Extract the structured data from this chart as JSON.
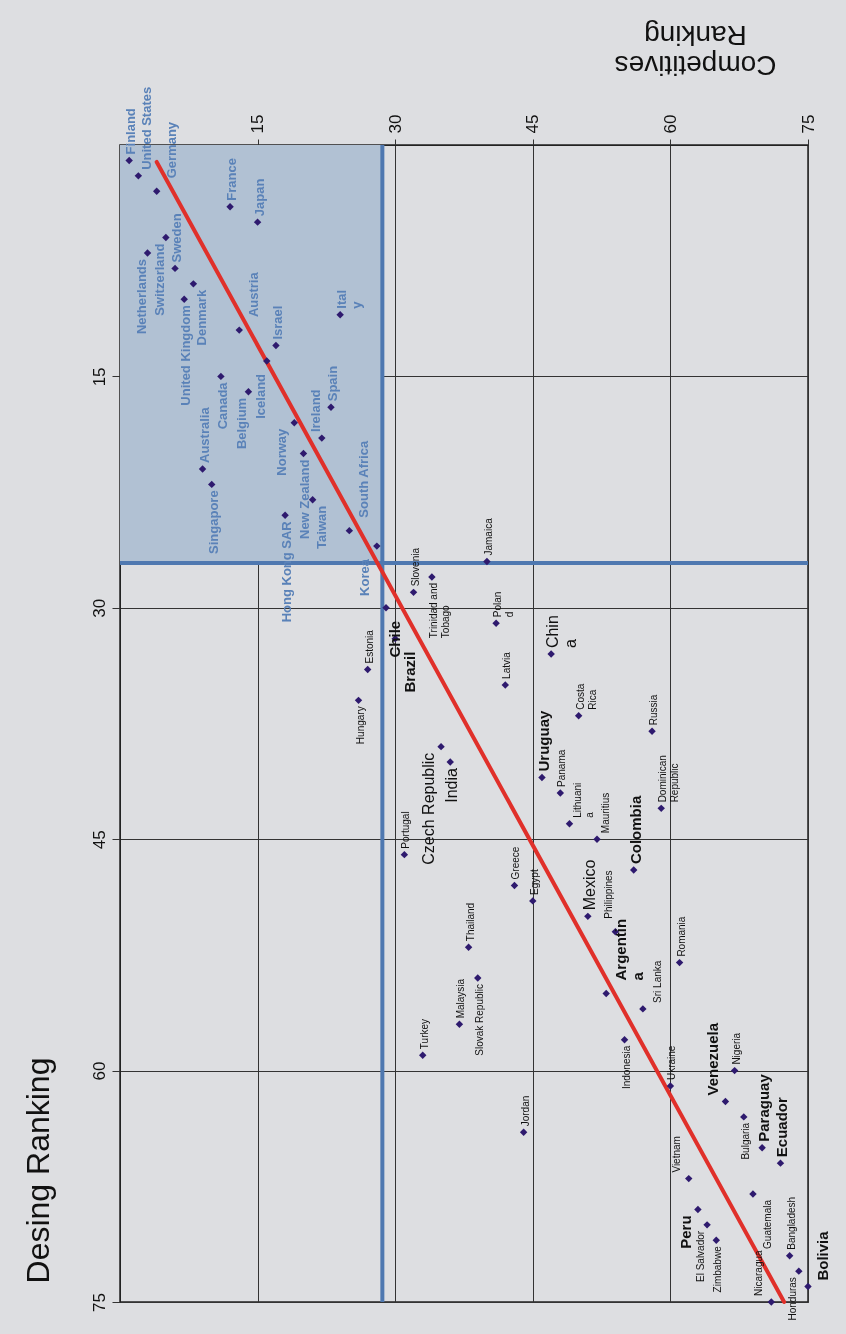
{
  "chart_data": {
    "type": "scatter",
    "xlabel": "Competitives Ranking",
    "ylabel": "Desing Ranking",
    "xlim": [
      0,
      75
    ],
    "ylim": [
      75,
      0
    ],
    "xticks": [
      15,
      30,
      45,
      60,
      75
    ],
    "yticks": [
      15,
      30,
      45,
      60,
      75
    ],
    "grid": true,
    "marker": "diamond",
    "ref_lines": [
      {
        "axis": "x",
        "value": 28.6,
        "color": "#4f78b0"
      },
      {
        "axis": "y",
        "value": 27.1,
        "color": "#4f78b0"
      }
    ],
    "series": [
      {
        "color": "#2e1a6e",
        "x": [
          1,
          2,
          4,
          12,
          15,
          5,
          3,
          6,
          8,
          7,
          24,
          13,
          17,
          16,
          11,
          14,
          23,
          19,
          22,
          20,
          9,
          10,
          21,
          18,
          25,
          28
        ],
        "values": [
          1,
          2,
          3,
          4,
          5,
          6,
          7,
          8,
          9,
          10,
          11,
          12,
          13,
          14,
          15,
          16,
          17,
          18,
          19,
          20,
          21,
          22,
          23,
          24,
          25,
          26
        ],
        "value_labels": [
          "Finland",
          "United States",
          "Germany",
          "France",
          "Japan",
          "Switzerland",
          "Netherlands",
          "Sweden",
          "Denmark",
          "United Kingdom",
          "Ital\ny",
          "Austria",
          "Israel",
          "Iceland",
          "Canada",
          "Belgium",
          "Spain",
          "Norway",
          "Ireland",
          "New Zealand",
          "Australia",
          "Singapore",
          "Taiwan",
          "Hong Kong SAR",
          "South Africa",
          "Korea"
        ]
      },
      {
        "color": "#2e1a6e",
        "x": [
          29,
          30,
          46,
          56,
          53,
          66,
          70,
          72,
          63,
          75
        ],
        "values": [
          30,
          32,
          41,
          47,
          55,
          62,
          65,
          66,
          69,
          74
        ],
        "value_labels": [
          "Chile",
          "Brazil",
          "Uruguay",
          "Colombia",
          "Argentin\na",
          "Venezuela",
          "Paraguay",
          "Ecuador",
          "Peru",
          "Bolivia"
        ]
      },
      {
        "color": "#2e1a6e",
        "x": [
          47,
          35,
          36,
          51
        ],
        "values": [
          33,
          39,
          40,
          50
        ],
        "value_labels": [
          "Chin\na",
          "Czech Republic",
          "India",
          "Mexico"
        ]
      },
      {
        "color": "#2e1a6e",
        "x": [
          40,
          34,
          32,
          41,
          27,
          42,
          26,
          50,
          58,
          48,
          59,
          49,
          52,
          31,
          43,
          45,
          54,
          38,
          61,
          39,
          57,
          37,
          55,
          33,
          67,
          60,
          68,
          44,
          62,
          69,
          64,
          65,
          73,
          74,
          71
        ],
        "values": [
          27,
          28,
          29,
          31,
          34,
          35,
          36,
          37,
          38,
          42,
          43,
          44,
          45,
          46,
          48,
          49,
          51,
          52,
          53,
          54,
          56,
          57,
          58,
          59,
          60,
          61,
          63,
          64,
          67,
          68,
          70,
          71,
          72,
          73,
          75
        ],
        "value_labels": [
          "Jamaica",
          "Trinidad and\nTobago",
          "Slovenia",
          "Polan\nd",
          "Estonia",
          "Latvia",
          "Hungary",
          "Costa\nRica",
          "Russia",
          "Panama",
          "Dominican\nRepublic",
          "Lithuani\na",
          "Mauritius",
          "Portugal",
          "Greece",
          "Egypt",
          "Philippines",
          "Thailand",
          "Romania",
          "Slovak Republic",
          "Sri Lanka",
          "Malaysia",
          "Indonesia",
          "Turkey",
          "Nigeria",
          "Ukraine",
          "Bulgaria",
          "Jordan",
          "Vietnam",
          "Guatemala",
          "El Salvador",
          "Zimbabwe",
          "Bangladesh",
          "Honduras",
          "Nicaragua"
        ]
      },
      {
        "type": "line",
        "marker": "none",
        "color": "#e0302a",
        "x": [
          4,
          72.4
        ],
        "values": [
          1.1,
          75
        ]
      }
    ]
  }
}
